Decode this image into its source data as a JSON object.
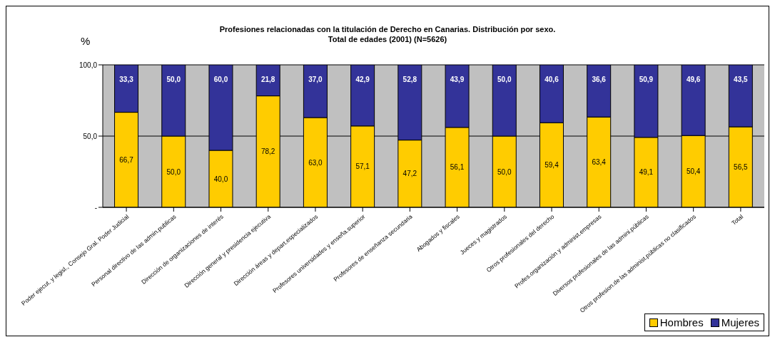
{
  "chart_data": {
    "type": "bar",
    "stacked": true,
    "title": "Profesiones relacionadas con la titulación de Derecho en Canarias.  Distribución por sexo.",
    "subtitle": "Total de edades (2001) (N=5626)",
    "ylabel": "%",
    "categories": [
      "Poder ejecut. y legisl., Consejo Gral. Poder Judicial",
      "Personal directivo de las admin.publicas",
      "Dirección de organizaciones de interés",
      "Dirección general y presidencia ejecutiva",
      "Dirección áreas y depart.especializados",
      "Profesores universidades y enseña.superior",
      "Profesores de enseñanza secundaria",
      "Abogados y fiscales",
      "Jueces y magistrados",
      "Otros profesionales del derecho",
      "Profes.organización y administ.empresas",
      "Diversos profesionales de las admini.públicas",
      "Otros profesion.de las administ.públicas no clasificados",
      "Total"
    ],
    "series": [
      {
        "name": "Hombres",
        "color": "#ffcc00",
        "values": [
          66.7,
          50.0,
          40.0,
          78.2,
          63.0,
          57.1,
          47.2,
          56.1,
          50.0,
          59.4,
          63.4,
          49.1,
          50.4,
          56.5
        ],
        "value_labels": [
          "66,7",
          "50,0",
          "40,0",
          "78,2",
          "63,0",
          "57,1",
          "47,2",
          "56,1",
          "50,0",
          "59,4",
          "63,4",
          "49,1",
          "50,4",
          "56,5"
        ]
      },
      {
        "name": "Mujeres",
        "color": "#333399",
        "values": [
          33.3,
          50.0,
          60.0,
          21.8,
          37.0,
          42.9,
          52.8,
          43.9,
          50.0,
          40.6,
          36.6,
          50.9,
          49.6,
          43.5
        ],
        "value_labels": [
          "33,3",
          "50,0",
          "60,0",
          "21,8",
          "37,0",
          "42,9",
          "52,8",
          "43,9",
          "50,0",
          "40,6",
          "36,6",
          "50,9",
          "49,6",
          "43,5"
        ]
      }
    ],
    "ylim": [
      0,
      100
    ],
    "yticks": [
      {
        "value": 0,
        "label": "-"
      },
      {
        "value": 50,
        "label": "50,0"
      },
      {
        "value": 100,
        "label": "100,0"
      }
    ],
    "grid": "y",
    "legend": "bottom right"
  }
}
